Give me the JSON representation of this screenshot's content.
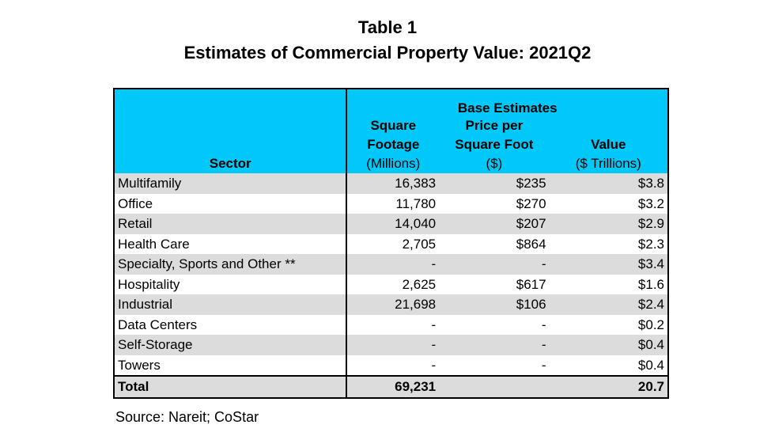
{
  "title": "Table 1",
  "subtitle": "Estimates of Commercial Property Value: 2021Q2",
  "header": {
    "group": "Base Estimates",
    "sector": "Sector",
    "sqft": [
      "Square",
      "Footage",
      "(Millions)"
    ],
    "price": [
      "Price per",
      "Square Foot",
      "($)"
    ],
    "value": [
      "Value",
      "($ Trillions)"
    ]
  },
  "rows": [
    {
      "sector": "Multifamily",
      "sqft": "16,383",
      "price": "$235",
      "value": "$3.8"
    },
    {
      "sector": "Office",
      "sqft": "11,780",
      "price": "$270",
      "value": "$3.2"
    },
    {
      "sector": "Retail",
      "sqft": "14,040",
      "price": "$207",
      "value": "$2.9"
    },
    {
      "sector": "Health Care",
      "sqft": "2,705",
      "price": "$864",
      "value": "$2.3"
    },
    {
      "sector": "Specialty, Sports and Other **",
      "sqft": "-",
      "price": "-",
      "value": "$3.4"
    },
    {
      "sector": "Hospitality",
      "sqft": "2,625",
      "price": "$617",
      "value": "$1.6"
    },
    {
      "sector": "Industrial",
      "sqft": "21,698",
      "price": "$106",
      "value": "$2.4"
    },
    {
      "sector": "Data Centers",
      "sqft": "-",
      "price": "-",
      "value": "$0.2"
    },
    {
      "sector": "Self-Storage",
      "sqft": "-",
      "price": "-",
      "value": "$0.4"
    },
    {
      "sector": "Towers",
      "sqft": "-",
      "price": "-",
      "value": "$0.4"
    }
  ],
  "total": {
    "sector": "Total",
    "sqft": "69,231",
    "price": "",
    "value": "20.7"
  },
  "source": "Source: Nareit; CoStar",
  "colors": {
    "header_bg": "#00c8f8",
    "stripe": "#dcdcdc"
  }
}
